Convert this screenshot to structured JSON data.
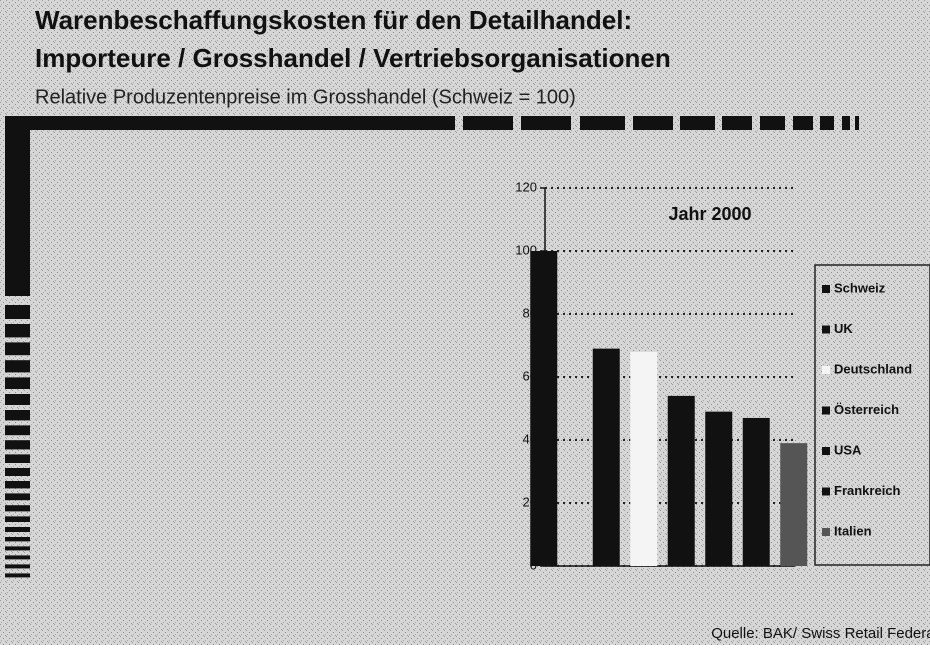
{
  "title": "Warenbeschaffungskosten für den Detailhandel:",
  "title2": "Importeure / Grosshandel / Vertriebsorganisationen",
  "subtitle": "Relative Produzentenpreise im Grosshandel (Schweiz = 100)",
  "source": "Quelle: BAK/ Swiss Retail Federation",
  "chart_data": {
    "type": "bar",
    "annotation": "Jahr 2000",
    "categories": [
      "Schweiz",
      "UK",
      "Deutschland",
      "Österreich",
      "USA",
      "Frankreich",
      "Italien"
    ],
    "values": [
      100,
      69,
      68,
      54,
      49,
      47,
      39
    ],
    "colors": [
      "#111111",
      "#111111",
      "#f4f4f4",
      "#111111",
      "#111111",
      "#111111",
      "#555555"
    ],
    "ylim": [
      0,
      120
    ],
    "yticks": [
      0,
      20,
      40,
      60,
      80,
      100,
      120
    ],
    "grid": true,
    "legend": "right"
  }
}
